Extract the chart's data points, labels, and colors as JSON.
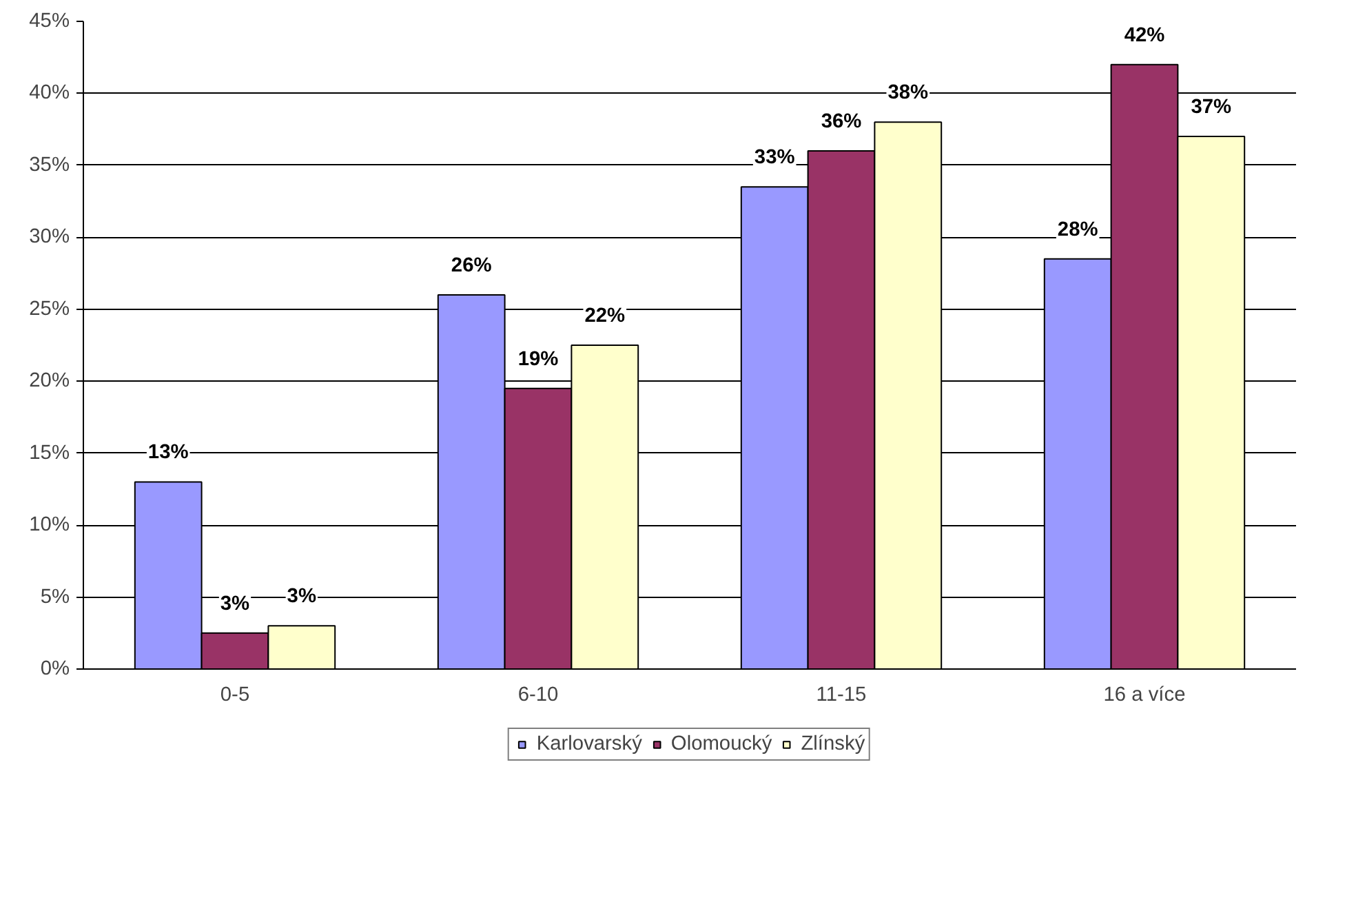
{
  "chart_data": {
    "type": "bar",
    "categories": [
      "0-5",
      "6-10",
      "11-15",
      "16 a více"
    ],
    "series": [
      {
        "name": "Karlovarský",
        "color": "#9999ff",
        "values": [
          13,
          26,
          33.5,
          28.5
        ],
        "value_labels": [
          "13%",
          "26%",
          "33%",
          "28%"
        ]
      },
      {
        "name": "Olomoucký",
        "color": "#993366",
        "values": [
          2.5,
          19.5,
          36,
          42
        ],
        "value_labels": [
          "3%",
          "19%",
          "36%",
          "42%"
        ]
      },
      {
        "name": "Zlínský",
        "color": "#ffffcc",
        "values": [
          3,
          22.5,
          38,
          37
        ],
        "value_labels": [
          "3%",
          "22%",
          "38%",
          "37%"
        ]
      }
    ],
    "ylim": [
      0,
      45
    ],
    "yticks": [
      {
        "value": 0,
        "label": "0%"
      },
      {
        "value": 5,
        "label": "5%"
      },
      {
        "value": 10,
        "label": "10%"
      },
      {
        "value": 15,
        "label": "15%"
      },
      {
        "value": 20,
        "label": "20%"
      },
      {
        "value": 25,
        "label": "25%"
      },
      {
        "value": 30,
        "label": "30%"
      },
      {
        "value": 35,
        "label": "35%"
      },
      {
        "value": 40,
        "label": "40%"
      },
      {
        "value": 45,
        "label": "45%"
      }
    ],
    "grid": "y",
    "legend": "bottom"
  }
}
